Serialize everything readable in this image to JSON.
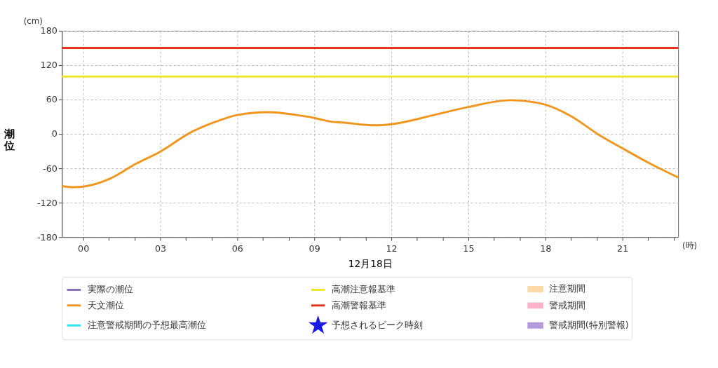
{
  "chart_data": {
    "type": "line",
    "xlabel": "12月18日",
    "ylabel": "潮位",
    "annotations": [
      "(cm)",
      "(時)"
    ],
    "xlim": [
      -0.83,
      23.17
    ],
    "xticks": [
      {
        "value": 0,
        "label": "00"
      },
      {
        "value": 1,
        "label": null
      },
      {
        "value": 2,
        "label": null
      },
      {
        "value": 3,
        "label": "03"
      },
      {
        "value": 4,
        "label": null
      },
      {
        "value": 5,
        "label": null
      },
      {
        "value": 6,
        "label": "06"
      },
      {
        "value": 7,
        "label": null
      },
      {
        "value": 8,
        "label": null
      },
      {
        "value": 9,
        "label": "09"
      },
      {
        "value": 10,
        "label": null
      },
      {
        "value": 11,
        "label": null
      },
      {
        "value": 12,
        "label": "12"
      },
      {
        "value": 13,
        "label": null
      },
      {
        "value": 14,
        "label": null
      },
      {
        "value": 15,
        "label": "15"
      },
      {
        "value": 16,
        "label": null
      },
      {
        "value": 17,
        "label": null
      },
      {
        "value": 18,
        "label": "18"
      },
      {
        "value": 19,
        "label": null
      },
      {
        "value": 20,
        "label": null
      },
      {
        "value": 21,
        "label": "21"
      },
      {
        "value": 22,
        "label": null
      },
      {
        "value": 23,
        "label": null
      }
    ],
    "ylim": [
      -180,
      180
    ],
    "yticks": [
      -180,
      -120,
      -60,
      0,
      60,
      120,
      180
    ],
    "grid": true,
    "legend": "bottom",
    "line_style": "solid",
    "series": [
      {
        "name": "実際の潮位",
        "color": "#8a70b4"
      },
      {
        "name": "天文潮位",
        "color": "#f0961e",
        "x": [
          -0.83,
          -0.35,
          0,
          1,
          2.06,
          3,
          4.2,
          5.2,
          6,
          7.24,
          8.3,
          9,
          9.7,
          10.09,
          11.35,
          12,
          13.66,
          15,
          16.65,
          18,
          19,
          20.1,
          21,
          22.05,
          23.17
        ],
        "values": [
          -91,
          -93,
          -92,
          -79,
          -52,
          -31,
          3,
          22,
          33,
          38,
          33,
          28,
          21,
          20,
          15,
          17,
          33,
          47,
          59,
          51,
          31,
          -2,
          -25,
          -51,
          -76
        ]
      },
      {
        "name": "注意警戒期間の予想最高潮位",
        "color": "#28e6f0"
      },
      {
        "name": "予想されるピーク時刻",
        "type": "scatter",
        "marker": "star",
        "color": "#1a1ae0"
      },
      {
        "name": "注意期間",
        "type": "area",
        "color": "#fcdaa8"
      },
      {
        "name": "警戒期間",
        "type": "area",
        "color": "#f9b2c8"
      },
      {
        "name": "警戒期間(特別警報)",
        "type": "area",
        "color": "#b49ade"
      }
    ],
    "ref_lines": [
      {
        "axis": "y",
        "value": 100,
        "label": "高潮注意報基準",
        "color": "#f0e628",
        "line_style": "solid"
      },
      {
        "axis": "y",
        "value": 150,
        "label": "高潮警報基準",
        "color": "#e6321e",
        "line_style": "solid"
      }
    ]
  }
}
